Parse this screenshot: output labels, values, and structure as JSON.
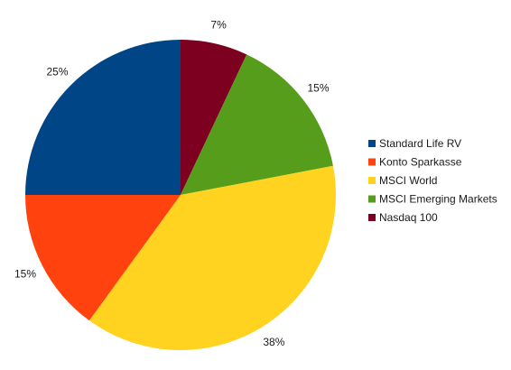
{
  "chart_data": {
    "type": "pie",
    "title": "",
    "slices": [
      {
        "label": "Standard Life RV",
        "value": 25,
        "display": "25%",
        "color": "#004586"
      },
      {
        "label": "Konto Sparkasse",
        "value": 15,
        "display": "15%",
        "color": "#ff420e"
      },
      {
        "label": "MSCI World",
        "value": 38,
        "display": "38%",
        "color": "#ffd320"
      },
      {
        "label": "MSCI Emerging Markets",
        "value": 15,
        "display": "15%",
        "color": "#579d1c"
      },
      {
        "label": "Nasdaq 100",
        "value": 7,
        "display": "7%",
        "color": "#7e0021"
      }
    ],
    "legend_position": "right",
    "start_angle_description": "12 o'clock, clockwise starting with Nasdaq 100"
  }
}
